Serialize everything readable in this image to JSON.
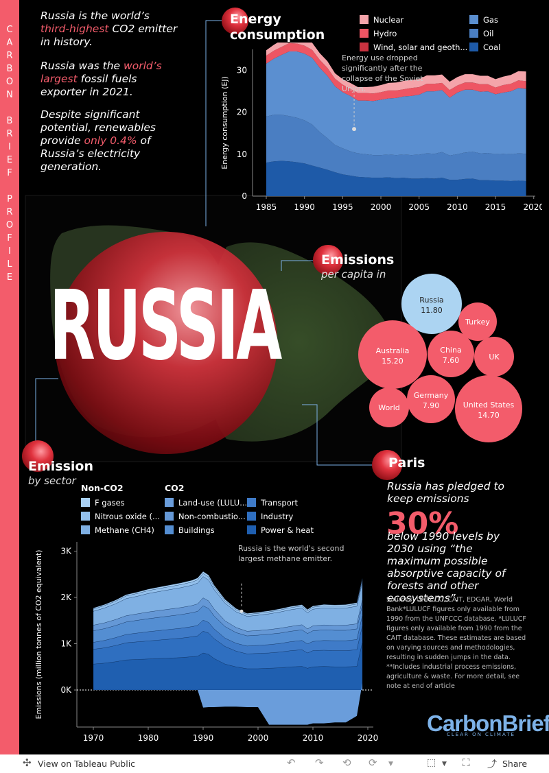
{
  "sidebar": {
    "label": "CARBON BRIEF PROFILE"
  },
  "intro": {
    "p1_a": "Russia is the world’s",
    "p1_hl": "third-highest",
    "p1_b": "CO2 emitter",
    "p1_c": "in history.",
    "p2_a": "Russia was the",
    "p2_hl": "world’s",
    "p2_hl2": "largest",
    "p2_b": "fossil fuels",
    "p2_c": "exporter in 2021.",
    "p3_a": "Despite significant",
    "p3_b": "potential, renewables",
    "p3_c": "provide",
    "p3_hl": "only 0.4%",
    "p3_d": "of",
    "p3_e": "Russia’s electricity",
    "p3_f": "generation."
  },
  "country": "RUSSIA",
  "energy": {
    "title_1": "Energy",
    "title_2": "consumption",
    "annotation": [
      "Energy use dropped",
      "significantly after the",
      "collapse of the Soviet",
      "Unjon."
    ]
  },
  "emissions_percap": {
    "title": "Emissions",
    "subtitle": "per capita in"
  },
  "sector": {
    "title": "Emission",
    "subtitle": "by sector",
    "legend_noco2": "Non-CO2",
    "legend_co2": "CO2",
    "annotation": [
      "Russia is the world's second",
      "largest methane emitter."
    ]
  },
  "paris": {
    "title": "Paris",
    "lines_a": [
      "Russia has pledged to",
      "keep emissions"
    ],
    "big": "30%",
    "lines_b": [
      "below 1990 levels by",
      "2030 using “the",
      "maximum possible",
      "absorptive capacity of",
      "forests and other",
      "ecosystems”."
    ]
  },
  "notes": "Sources: UNFCCC, CAIT, EDGAR, World Bank*LULUCF figures only available from 1990 from the UNFCCC database. *LULUCF figures only available from 1990 from the CAIT database. These estimates are based on varying sources and methodologies, resulting in sudden jumps in the data. **Includes industrial process emissions, agriculture & waste. For more detail, see note at end of article",
  "logo": {
    "name": "CarbonBrief",
    "tag": "CLEAR ON CLIMATE"
  },
  "footer": {
    "view": "View on Tableau Public",
    "share": "Share"
  },
  "colors": {
    "accent": "#f35c6b",
    "nuclear": "#f4a4aa",
    "hydro": "#ee5563",
    "wind": "#c8323f",
    "gas": "#5b8fd0",
    "oil": "#4a7ec2",
    "coal": "#1e5aa8"
  },
  "chart_data": [
    {
      "type": "area",
      "title": "Energy consumption",
      "xlabel": "",
      "ylabel": "Energy consumption (EJ)",
      "ylim": [
        0,
        35
      ],
      "xlim": [
        1985,
        2020
      ],
      "yticks": [
        0,
        10,
        20,
        30
      ],
      "xticks": [
        1985,
        1990,
        1995,
        2000,
        2005,
        2010,
        2015,
        2020
      ],
      "x": [
        1985,
        1986,
        1987,
        1988,
        1989,
        1990,
        1991,
        1992,
        1993,
        1994,
        1995,
        1996,
        1997,
        1998,
        1999,
        2000,
        2001,
        2002,
        2003,
        2004,
        2005,
        2006,
        2007,
        2008,
        2009,
        2010,
        2011,
        2012,
        2013,
        2014,
        2015,
        2016,
        2017,
        2018,
        2019
      ],
      "series": [
        {
          "name": "Coal",
          "values": [
            8,
            8.3,
            8.4,
            8.3,
            8.1,
            7.8,
            7.3,
            6.8,
            6.3,
            5.7,
            5.2,
            4.9,
            4.6,
            4.5,
            4.4,
            4.4,
            4.5,
            4.3,
            4.4,
            4.2,
            4.2,
            4.3,
            4.2,
            4.4,
            3.9,
            3.9,
            4.1,
            4.2,
            3.8,
            3.8,
            3.7,
            3.7,
            3.6,
            3.7,
            3.6
          ]
        },
        {
          "name": "Oil",
          "values": [
            11,
            11.1,
            11,
            10.8,
            10.6,
            10.3,
            9.8,
            8.5,
            7.5,
            6.5,
            6.2,
            5.8,
            5.6,
            5.5,
            5.4,
            5.4,
            5.4,
            5.5,
            5.5,
            5.6,
            5.7,
            5.9,
            5.9,
            6.1,
            5.8,
            6.1,
            6.3,
            6.4,
            6.4,
            6.5,
            6.3,
            6.4,
            6.4,
            6.5,
            6.5
          ]
        },
        {
          "name": "Gas",
          "values": [
            12.6,
            13.4,
            14.3,
            15.4,
            15.8,
            15.9,
            15.9,
            15.3,
            14.9,
            14,
            13.4,
            13.2,
            12.6,
            12.8,
            12.9,
            13.2,
            13.4,
            13.6,
            13.9,
            14.1,
            14.3,
            14.8,
            14.9,
            14.8,
            13.8,
            14.7,
            15,
            14.8,
            14.7,
            14.7,
            14.3,
            14.6,
            15,
            15.6,
            15.5
          ]
        },
        {
          "name": "Wind, solar and geoth...",
          "values": [
            0,
            0,
            0,
            0,
            0,
            0,
            0,
            0,
            0,
            0,
            0,
            0,
            0,
            0,
            0,
            0,
            0,
            0,
            0,
            0,
            0,
            0,
            0,
            0,
            0,
            0,
            0,
            0,
            0,
            0,
            0,
            0,
            0,
            0.01,
            0.02
          ]
        },
        {
          "name": "Hydro",
          "values": [
            1.9,
            1.9,
            1.9,
            2,
            1.9,
            1.9,
            1.9,
            1.9,
            1.9,
            1.8,
            1.8,
            1.7,
            1.8,
            1.8,
            1.8,
            1.8,
            1.9,
            1.8,
            1.7,
            1.9,
            1.8,
            1.8,
            1.8,
            1.7,
            1.8,
            1.7,
            1.7,
            1.7,
            1.8,
            1.7,
            1.6,
            1.8,
            1.8,
            1.8,
            1.8
          ]
        },
        {
          "name": "Nuclear",
          "values": [
            1.3,
            1.4,
            1.6,
            1.7,
            1.7,
            1.7,
            1.7,
            1.6,
            1.6,
            1.3,
            1.3,
            1.4,
            1.4,
            1.4,
            1.6,
            1.7,
            1.8,
            1.9,
            2,
            1.9,
            1.9,
            2,
            2,
            2,
            2,
            2,
            2,
            2,
            2,
            2,
            2,
            2,
            2.1,
            2.2,
            2.3
          ]
        }
      ]
    },
    {
      "type": "scatter",
      "title": "Emissions per capita",
      "points": [
        {
          "label": "Russia",
          "value": 11.8,
          "display": "11.80"
        },
        {
          "label": "Australia",
          "value": 15.2,
          "display": "15.20"
        },
        {
          "label": "United States",
          "value": 14.7,
          "display": "14.70"
        },
        {
          "label": "China",
          "value": 7.6,
          "display": "7.60"
        },
        {
          "label": "Germany",
          "value": 7.9,
          "display": "7.90"
        },
        {
          "label": "UK",
          "value": null,
          "display": ""
        },
        {
          "label": "Turkey",
          "value": null,
          "display": ""
        },
        {
          "label": "World",
          "value": null,
          "display": ""
        }
      ]
    },
    {
      "type": "area",
      "title": "Emission by sector",
      "ylabel": "Emissions (million tonnes of CO2 equivalent)",
      "ylim": [
        -800,
        3200
      ],
      "xlim": [
        1967,
        2021
      ],
      "yticks": [
        0,
        1000,
        2000,
        3000
      ],
      "ytick_labels": [
        "0K",
        "1K",
        "2K",
        "3K"
      ],
      "xticks": [
        1970,
        1980,
        1990,
        2000,
        2010,
        2020
      ],
      "x": [
        1970,
        1972,
        1974,
        1976,
        1978,
        1980,
        1982,
        1984,
        1986,
        1988,
        1989,
        1990,
        1991,
        1992,
        1994,
        1996,
        1998,
        2000,
        2002,
        2004,
        2006,
        2008,
        2009,
        2010,
        2012,
        2014,
        2016,
        2018,
        2019
      ],
      "series": [
        {
          "name": "Power & heat",
          "values": [
            560,
            580,
            610,
            650,
            660,
            670,
            680,
            690,
            700,
            720,
            730,
            800,
            770,
            680,
            560,
            500,
            460,
            460,
            470,
            480,
            500,
            510,
            470,
            500,
            510,
            500,
            500,
            510,
            1030
          ]
        },
        {
          "name": "Industry",
          "values": [
            320,
            330,
            350,
            370,
            380,
            390,
            400,
            410,
            420,
            430,
            440,
            470,
            460,
            430,
            380,
            340,
            320,
            330,
            330,
            340,
            350,
            360,
            330,
            350,
            350,
            350,
            350,
            360,
            360
          ]
        },
        {
          "name": "Transport",
          "values": [
            150,
            160,
            170,
            180,
            190,
            200,
            205,
            210,
            215,
            220,
            225,
            240,
            230,
            210,
            180,
            170,
            170,
            175,
            180,
            185,
            195,
            200,
            195,
            200,
            210,
            215,
            215,
            220,
            220
          ]
        },
        {
          "name": "Buildings",
          "values": [
            250,
            255,
            260,
            270,
            275,
            280,
            285,
            290,
            295,
            300,
            305,
            310,
            300,
            280,
            250,
            230,
            220,
            220,
            225,
            225,
            225,
            230,
            225,
            230,
            230,
            225,
            225,
            230,
            230
          ]
        },
        {
          "name": "Non-combustio...",
          "values": [
            120,
            125,
            130,
            135,
            140,
            145,
            148,
            150,
            152,
            155,
            160,
            170,
            165,
            150,
            125,
            110,
            100,
            100,
            100,
            105,
            105,
            110,
            100,
            105,
            105,
            105,
            110,
            110,
            110
          ]
        },
        {
          "name": "Methane (CH4)",
          "values": [
            300,
            320,
            340,
            370,
            380,
            400,
            410,
            420,
            430,
            440,
            450,
            460,
            450,
            420,
            380,
            340,
            320,
            330,
            340,
            350,
            360,
            360,
            350,
            360,
            370,
            370,
            370,
            380,
            380
          ]
        },
        {
          "name": "Nitrous oxide (...",
          "values": [
            50,
            52,
            55,
            58,
            60,
            62,
            64,
            65,
            66,
            68,
            70,
            70,
            68,
            60,
            50,
            45,
            42,
            42,
            43,
            44,
            45,
            46,
            44,
            45,
            46,
            46,
            47,
            48,
            48
          ]
        },
        {
          "name": "F gases",
          "values": [
            20,
            22,
            24,
            26,
            28,
            30,
            32,
            34,
            36,
            38,
            40,
            40,
            38,
            35,
            30,
            25,
            22,
            22,
            22,
            24,
            25,
            26,
            24,
            25,
            26,
            26,
            27,
            28,
            28
          ]
        },
        {
          "name": "Land-use (LULU...",
          "values": [
            0,
            0,
            0,
            0,
            0,
            0,
            0,
            0,
            0,
            0,
            0,
            -380,
            -370,
            -370,
            -360,
            -360,
            -370,
            -370,
            -750,
            -750,
            -750,
            -750,
            -750,
            -720,
            -720,
            -700,
            -700,
            -560,
            150
          ]
        }
      ],
      "annotation_year": 1997
    }
  ]
}
